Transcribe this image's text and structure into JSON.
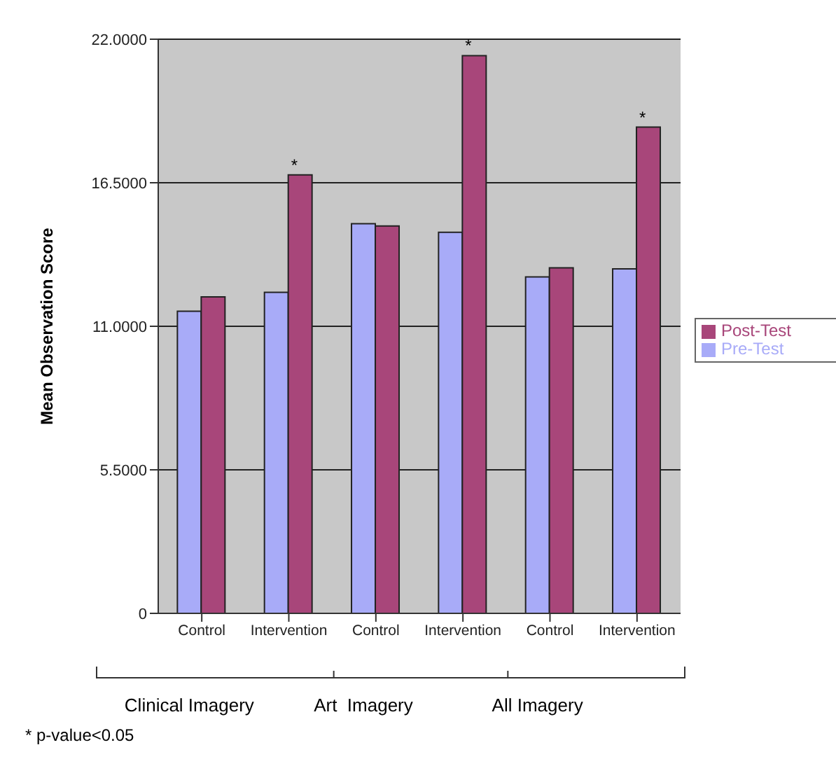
{
  "chart_data": {
    "type": "bar",
    "ylabel": "Mean Observation Score",
    "categories": [
      "Control",
      "Intervention",
      "Control",
      "Intervention",
      "Control",
      "Intervention"
    ],
    "series": [
      {
        "name": "Pre-Test",
        "color": "#a8abf8",
        "values": [
          11.58,
          12.3,
          14.93,
          14.6,
          12.89,
          13.2
        ]
      },
      {
        "name": "Post-Test",
        "color": "#a8467a",
        "values": [
          12.13,
          16.8,
          14.84,
          21.37,
          13.24,
          18.63
        ],
        "value_labels": [
          null,
          "*",
          null,
          "*",
          null,
          "*"
        ]
      }
    ],
    "ylim": [
      0,
      22
    ],
    "yticks": [
      {
        "value": 0,
        "label": "0"
      },
      {
        "value": 5.5,
        "label": "5.5000"
      },
      {
        "value": 11,
        "label": "11.0000"
      },
      {
        "value": 16.5,
        "label": "16.5000"
      },
      {
        "value": 22,
        "label": "22.0000"
      }
    ],
    "grid": "y",
    "legend": "right",
    "annotations": [
      "Clinical Imagery",
      "Art  Imagery",
      "All Imagery",
      "* p-value<0.05"
    ]
  }
}
